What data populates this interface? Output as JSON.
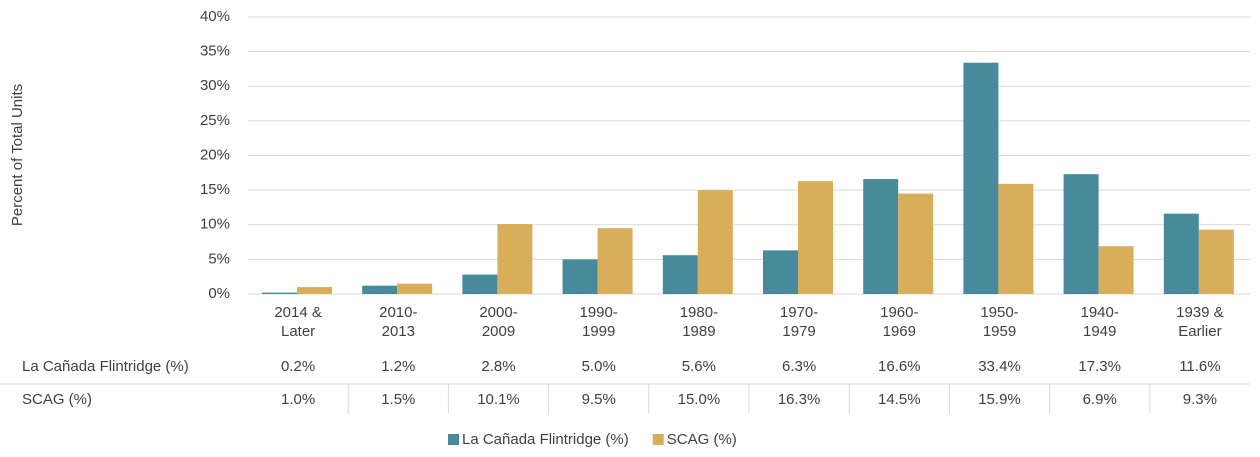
{
  "chart_data": {
    "type": "bar",
    "y_label": "Percent of Total Units",
    "categories": [
      [
        "2014 &",
        "Later"
      ],
      [
        "2010-",
        "2013"
      ],
      [
        "2000-",
        "2009"
      ],
      [
        "1990-",
        "1999"
      ],
      [
        "1980-",
        "1989"
      ],
      [
        "1970-",
        "1979"
      ],
      [
        "1960-",
        "1969"
      ],
      [
        "1950-",
        "1959"
      ],
      [
        "1940-",
        "1949"
      ],
      [
        "1939 &",
        "Earlier"
      ]
    ],
    "series": [
      {
        "name": "La Cañada Flintridge (%)",
        "color": "#468a9b",
        "values": [
          0.2,
          1.2,
          2.8,
          5.0,
          5.6,
          6.3,
          16.6,
          33.4,
          17.3,
          11.6
        ],
        "value_labels": [
          "0.2%",
          "1.2%",
          "2.8%",
          "5.0%",
          "5.6%",
          "6.3%",
          "16.6%",
          "33.4%",
          "17.3%",
          "11.6%"
        ]
      },
      {
        "name": "SCAG (%)",
        "color": "#d9ae5a",
        "values": [
          1.0,
          1.5,
          10.1,
          9.5,
          15.0,
          16.3,
          14.5,
          15.9,
          6.9,
          9.3
        ],
        "value_labels": [
          "1.0%",
          "1.5%",
          "10.1%",
          "9.5%",
          "15.0%",
          "16.3%",
          "14.5%",
          "15.9%",
          "6.9%",
          "9.3%"
        ]
      }
    ],
    "ylim": [
      0,
      40
    ],
    "yticks": [
      {
        "value": 0,
        "label": "0%"
      },
      {
        "value": 5,
        "label": "5%"
      },
      {
        "value": 10,
        "label": "10%"
      },
      {
        "value": 15,
        "label": "15%"
      },
      {
        "value": 20,
        "label": "20%"
      },
      {
        "value": 25,
        "label": "25%"
      },
      {
        "value": 30,
        "label": "30%"
      },
      {
        "value": 35,
        "label": "35%"
      },
      {
        "value": 40,
        "label": "40%"
      }
    ],
    "grid": true
  }
}
